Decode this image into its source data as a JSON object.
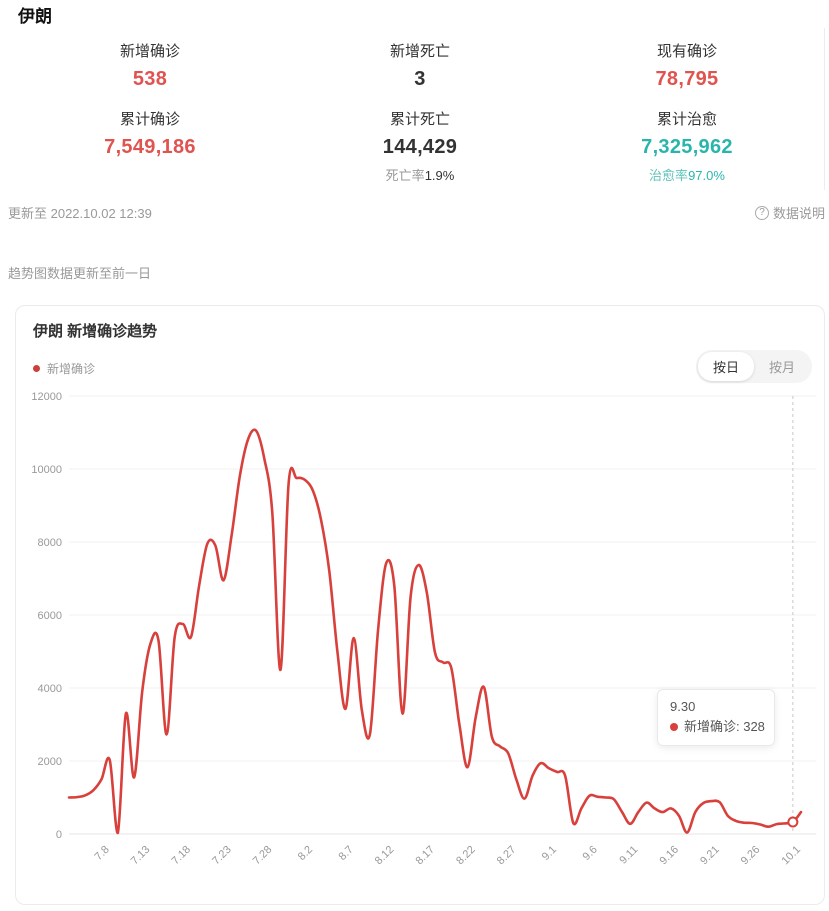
{
  "page": {
    "title": "伊朗"
  },
  "stats": [
    {
      "label": "新增确诊",
      "value": "538",
      "color": "red"
    },
    {
      "label": "新增死亡",
      "value": "3",
      "color": "dark"
    },
    {
      "label": "现有确诊",
      "value": "78,795",
      "color": "red"
    },
    {
      "label": "累计确诊",
      "value": "7,549,186",
      "color": "red"
    },
    {
      "label": "累计死亡",
      "value": "144,429",
      "color": "dark",
      "sub_label": "死亡率",
      "sub_value": "1.9%"
    },
    {
      "label": "累计治愈",
      "value": "7,325,962",
      "color": "teal",
      "sub_label": "治愈率",
      "sub_value": "97.0%"
    }
  ],
  "meta": {
    "updated": "更新至 2022.10.02 12:39",
    "help_icon": "?",
    "help_label": "数据说明",
    "trend_note": "趋势图数据更新至前一日"
  },
  "trend_card": {
    "title": "伊朗 新增确诊趋势",
    "legend": {
      "label": "新增确诊",
      "color": "#c9403c"
    },
    "tabs": [
      {
        "label": "按日",
        "active": true
      },
      {
        "label": "按月",
        "active": false
      }
    ],
    "tooltip": {
      "date": "9.30",
      "entry": "新增确诊: 328"
    }
  },
  "colors": {
    "red": "#e0534f",
    "dark": "#333333",
    "teal": "#2ab5ac",
    "line": "#d8403c",
    "grid": "#f0f0f0",
    "axis_text": "#999999",
    "crosshair": "#c7c7c7"
  },
  "chart_data": {
    "type": "line",
    "title": "伊朗 新增确诊趋势",
    "legend_position": "top-left",
    "grid": true,
    "ylim": [
      0,
      12000
    ],
    "ytick_interval": 2000,
    "xtick_labels": [
      "7.8",
      "7.13",
      "7.18",
      "7.23",
      "7.28",
      "8.2",
      "8.7",
      "8.12",
      "8.17",
      "8.22",
      "8.27",
      "9.1",
      "9.6",
      "9.11",
      "9.16",
      "9.21",
      "9.26",
      "10.1"
    ],
    "highlight": {
      "x": "9.30",
      "series": "新增确诊",
      "value": 328
    },
    "x": [
      "7.3",
      "7.4",
      "7.5",
      "7.6",
      "7.7",
      "7.8",
      "7.9",
      "7.10",
      "7.11",
      "7.12",
      "7.13",
      "7.14",
      "7.15",
      "7.16",
      "7.17",
      "7.18",
      "7.19",
      "7.20",
      "7.21",
      "7.22",
      "7.23",
      "7.24",
      "7.25",
      "7.26",
      "7.27",
      "7.28",
      "7.29",
      "7.30",
      "7.31",
      "8.1",
      "8.2",
      "8.3",
      "8.4",
      "8.5",
      "8.6",
      "8.7",
      "8.8",
      "8.9",
      "8.10",
      "8.11",
      "8.12",
      "8.13",
      "8.14",
      "8.15",
      "8.16",
      "8.17",
      "8.18",
      "8.19",
      "8.20",
      "8.21",
      "8.22",
      "8.23",
      "8.24",
      "8.25",
      "8.26",
      "8.27",
      "8.28",
      "8.29",
      "8.30",
      "8.31",
      "9.1",
      "9.2",
      "9.3",
      "9.4",
      "9.5",
      "9.6",
      "9.7",
      "9.8",
      "9.9",
      "9.10",
      "9.11",
      "9.12",
      "9.13",
      "9.14",
      "9.15",
      "9.16",
      "9.17",
      "9.18",
      "9.19",
      "9.20",
      "9.21",
      "9.22",
      "9.23",
      "9.24",
      "9.25",
      "9.26",
      "9.27",
      "9.28",
      "9.29",
      "9.30",
      "10.1"
    ],
    "series": [
      {
        "name": "新增确诊",
        "color": "#d8403c",
        "values": [
          1000,
          1010,
          1060,
          1200,
          1500,
          2030,
          30,
          3300,
          1550,
          3900,
          5200,
          5300,
          2730,
          5400,
          5750,
          5400,
          6800,
          7950,
          7900,
          6950,
          8200,
          9800,
          10800,
          11050,
          10300,
          8800,
          4500,
          9600,
          9750,
          9700,
          9400,
          8600,
          7200,
          5000,
          3430,
          5370,
          3400,
          2730,
          5600,
          7420,
          6800,
          3300,
          6500,
          7370,
          6600,
          4970,
          4700,
          4550,
          3000,
          1830,
          3200,
          4030,
          2660,
          2400,
          2210,
          1500,
          970,
          1600,
          1940,
          1800,
          1700,
          1600,
          300,
          700,
          1050,
          1020,
          1000,
          950,
          600,
          280,
          600,
          860,
          700,
          600,
          700,
          500,
          40,
          600,
          850,
          900,
          870,
          500,
          360,
          310,
          300,
          260,
          200,
          270,
          290,
          328,
          600
        ]
      }
    ]
  }
}
